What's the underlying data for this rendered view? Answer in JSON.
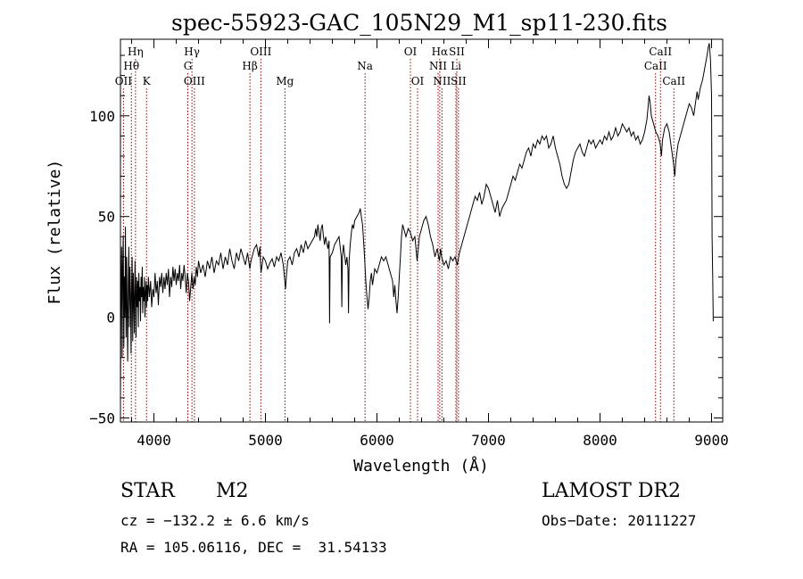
{
  "chart_data": {
    "type": "line",
    "title": "spec-55923-GAC_105N29_M1_sp11-230.fits",
    "xlabel": "Wavelength (Å)",
    "ylabel": "Flux (relative)",
    "xlim": [
      3700,
      9100
    ],
    "ylim": [
      -52,
      138
    ],
    "xticks": [
      4000,
      5000,
      6000,
      7000,
      8000,
      9000
    ],
    "yticks": [
      -50,
      0,
      50,
      100
    ],
    "grid": false,
    "line_color": "#000000",
    "marker_color": "#8b0000",
    "spectrum": [
      [
        3700,
        -40
      ],
      [
        3705,
        10
      ],
      [
        3710,
        35
      ],
      [
        3715,
        -20
      ],
      [
        3720,
        25
      ],
      [
        3725,
        40
      ],
      [
        3730,
        -15
      ],
      [
        3735,
        20
      ],
      [
        3740,
        0
      ],
      [
        3745,
        45
      ],
      [
        3750,
        -10
      ],
      [
        3755,
        30
      ],
      [
        3760,
        5
      ],
      [
        3765,
        -22
      ],
      [
        3770,
        18
      ],
      [
        3775,
        35
      ],
      [
        3780,
        -5
      ],
      [
        3785,
        25
      ],
      [
        3790,
        10
      ],
      [
        3795,
        -18
      ],
      [
        3800,
        15
      ],
      [
        3805,
        30
      ],
      [
        3810,
        -12
      ],
      [
        3815,
        22
      ],
      [
        3820,
        8
      ],
      [
        3825,
        -8
      ],
      [
        3830,
        28
      ],
      [
        3835,
        12
      ],
      [
        3840,
        -10
      ],
      [
        3845,
        20
      ],
      [
        3850,
        5
      ],
      [
        3855,
        18
      ],
      [
        3860,
        -5
      ],
      [
        3865,
        22
      ],
      [
        3870,
        8
      ],
      [
        3875,
        15
      ],
      [
        3880,
        -2
      ],
      [
        3885,
        20
      ],
      [
        3890,
        10
      ],
      [
        3895,
        25
      ],
      [
        3900,
        2
      ],
      [
        3905,
        15
      ],
      [
        3910,
        8
      ],
      [
        3915,
        20
      ],
      [
        3920,
        0
      ],
      [
        3925,
        12
      ],
      [
        3930,
        18
      ],
      [
        3935,
        5
      ],
      [
        3940,
        16
      ],
      [
        3945,
        8
      ],
      [
        3950,
        20
      ],
      [
        3960,
        10
      ],
      [
        3970,
        18
      ],
      [
        3980,
        5
      ],
      [
        3990,
        14
      ],
      [
        4000,
        10
      ],
      [
        4010,
        22
      ],
      [
        4020,
        12
      ],
      [
        4030,
        18
      ],
      [
        4040,
        6
      ],
      [
        4050,
        20
      ],
      [
        4060,
        15
      ],
      [
        4070,
        22
      ],
      [
        4080,
        12
      ],
      [
        4090,
        20
      ],
      [
        4100,
        14
      ],
      [
        4110,
        22
      ],
      [
        4120,
        16
      ],
      [
        4130,
        24
      ],
      [
        4140,
        10
      ],
      [
        4150,
        20
      ],
      [
        4160,
        15
      ],
      [
        4170,
        25
      ],
      [
        4180,
        18
      ],
      [
        4190,
        24
      ],
      [
        4200,
        16
      ],
      [
        4210,
        22
      ],
      [
        4220,
        18
      ],
      [
        4230,
        26
      ],
      [
        4240,
        14
      ],
      [
        4250,
        22
      ],
      [
        4260,
        18
      ],
      [
        4270,
        26
      ],
      [
        4280,
        20
      ],
      [
        4290,
        12
      ],
      [
        4300,
        22
      ],
      [
        4310,
        18
      ],
      [
        4320,
        8
      ],
      [
        4330,
        15
      ],
      [
        4340,
        22
      ],
      [
        4350,
        14
      ],
      [
        4360,
        20
      ],
      [
        4370,
        16
      ],
      [
        4380,
        25
      ],
      [
        4390,
        20
      ],
      [
        4400,
        28
      ],
      [
        4420,
        22
      ],
      [
        4440,
        26
      ],
      [
        4460,
        20
      ],
      [
        4480,
        28
      ],
      [
        4500,
        24
      ],
      [
        4520,
        30
      ],
      [
        4540,
        22
      ],
      [
        4560,
        28
      ],
      [
        4580,
        26
      ],
      [
        4600,
        32
      ],
      [
        4620,
        24
      ],
      [
        4640,
        30
      ],
      [
        4660,
        26
      ],
      [
        4680,
        34
      ],
      [
        4700,
        28
      ],
      [
        4720,
        24
      ],
      [
        4740,
        32
      ],
      [
        4760,
        28
      ],
      [
        4780,
        34
      ],
      [
        4800,
        30
      ],
      [
        4820,
        26
      ],
      [
        4840,
        32
      ],
      [
        4860,
        24
      ],
      [
        4870,
        28
      ],
      [
        4880,
        30
      ],
      [
        4900,
        34
      ],
      [
        4920,
        36
      ],
      [
        4940,
        30
      ],
      [
        4950,
        35
      ],
      [
        4960,
        22
      ],
      [
        4970,
        26
      ],
      [
        4980,
        30
      ],
      [
        5000,
        28
      ],
      [
        5020,
        24
      ],
      [
        5040,
        27
      ],
      [
        5060,
        29
      ],
      [
        5080,
        25
      ],
      [
        5100,
        30
      ],
      [
        5120,
        28
      ],
      [
        5140,
        32
      ],
      [
        5160,
        26
      ],
      [
        5170,
        20
      ],
      [
        5180,
        14
      ],
      [
        5190,
        22
      ],
      [
        5200,
        28
      ],
      [
        5220,
        30
      ],
      [
        5240,
        26
      ],
      [
        5260,
        32
      ],
      [
        5280,
        34
      ],
      [
        5300,
        30
      ],
      [
        5320,
        36
      ],
      [
        5340,
        32
      ],
      [
        5360,
        38
      ],
      [
        5380,
        34
      ],
      [
        5400,
        36
      ],
      [
        5420,
        38
      ],
      [
        5440,
        40
      ],
      [
        5450,
        44
      ],
      [
        5460,
        40
      ],
      [
        5470,
        46
      ],
      [
        5480,
        42
      ],
      [
        5490,
        38
      ],
      [
        5500,
        44
      ],
      [
        5510,
        46
      ],
      [
        5520,
        40
      ],
      [
        5530,
        36
      ],
      [
        5540,
        40
      ],
      [
        5560,
        34
      ],
      [
        5570,
        38
      ],
      [
        5575,
        -3
      ],
      [
        5580,
        30
      ],
      [
        5600,
        32
      ],
      [
        5620,
        36
      ],
      [
        5640,
        38
      ],
      [
        5660,
        40
      ],
      [
        5680,
        30
      ],
      [
        5685,
        5
      ],
      [
        5690,
        30
      ],
      [
        5700,
        36
      ],
      [
        5720,
        26
      ],
      [
        5730,
        30
      ],
      [
        5740,
        24
      ],
      [
        5745,
        2
      ],
      [
        5750,
        28
      ],
      [
        5760,
        36
      ],
      [
        5770,
        42
      ],
      [
        5780,
        46
      ],
      [
        5790,
        44
      ],
      [
        5800,
        48
      ],
      [
        5820,
        50
      ],
      [
        5840,
        52
      ],
      [
        5850,
        54
      ],
      [
        5860,
        50
      ],
      [
        5870,
        46
      ],
      [
        5880,
        38
      ],
      [
        5890,
        28
      ],
      [
        5900,
        18
      ],
      [
        5910,
        10
      ],
      [
        5920,
        4
      ],
      [
        5930,
        10
      ],
      [
        5940,
        18
      ],
      [
        5950,
        22
      ],
      [
        5960,
        16
      ],
      [
        5980,
        24
      ],
      [
        6000,
        22
      ],
      [
        6020,
        26
      ],
      [
        6040,
        30
      ],
      [
        6060,
        28
      ],
      [
        6080,
        30
      ],
      [
        6100,
        26
      ],
      [
        6120,
        22
      ],
      [
        6140,
        18
      ],
      [
        6150,
        10
      ],
      [
        6160,
        16
      ],
      [
        6170,
        8
      ],
      [
        6180,
        2
      ],
      [
        6190,
        10
      ],
      [
        6200,
        20
      ],
      [
        6210,
        30
      ],
      [
        6220,
        40
      ],
      [
        6230,
        46
      ],
      [
        6240,
        44
      ],
      [
        6260,
        40
      ],
      [
        6280,
        44
      ],
      [
        6300,
        42
      ],
      [
        6320,
        38
      ],
      [
        6340,
        40
      ],
      [
        6360,
        28
      ],
      [
        6370,
        34
      ],
      [
        6380,
        40
      ],
      [
        6400,
        44
      ],
      [
        6420,
        48
      ],
      [
        6440,
        50
      ],
      [
        6460,
        46
      ],
      [
        6480,
        40
      ],
      [
        6500,
        36
      ],
      [
        6520,
        30
      ],
      [
        6540,
        34
      ],
      [
        6560,
        28
      ],
      [
        6570,
        34
      ],
      [
        6580,
        30
      ],
      [
        6600,
        26
      ],
      [
        6620,
        28
      ],
      [
        6640,
        24
      ],
      [
        6660,
        30
      ],
      [
        6680,
        28
      ],
      [
        6700,
        30
      ],
      [
        6720,
        26
      ],
      [
        6740,
        32
      ],
      [
        6760,
        36
      ],
      [
        6780,
        40
      ],
      [
        6800,
        44
      ],
      [
        6820,
        48
      ],
      [
        6840,
        52
      ],
      [
        6860,
        56
      ],
      [
        6880,
        60
      ],
      [
        6900,
        58
      ],
      [
        6920,
        62
      ],
      [
        6940,
        56
      ],
      [
        6960,
        60
      ],
      [
        6980,
        66
      ],
      [
        7000,
        64
      ],
      [
        7020,
        60
      ],
      [
        7040,
        56
      ],
      [
        7060,
        52
      ],
      [
        7080,
        58
      ],
      [
        7100,
        50
      ],
      [
        7120,
        54
      ],
      [
        7140,
        56
      ],
      [
        7160,
        58
      ],
      [
        7180,
        62
      ],
      [
        7200,
        66
      ],
      [
        7220,
        70
      ],
      [
        7240,
        68
      ],
      [
        7260,
        72
      ],
      [
        7280,
        76
      ],
      [
        7300,
        74
      ],
      [
        7320,
        78
      ],
      [
        7340,
        82
      ],
      [
        7360,
        84
      ],
      [
        7380,
        80
      ],
      [
        7400,
        86
      ],
      [
        7420,
        84
      ],
      [
        7440,
        88
      ],
      [
        7460,
        86
      ],
      [
        7480,
        90
      ],
      [
        7500,
        88
      ],
      [
        7520,
        90
      ],
      [
        7540,
        84
      ],
      [
        7560,
        86
      ],
      [
        7580,
        90
      ],
      [
        7600,
        84
      ],
      [
        7620,
        80
      ],
      [
        7640,
        76
      ],
      [
        7660,
        70
      ],
      [
        7680,
        66
      ],
      [
        7700,
        64
      ],
      [
        7720,
        66
      ],
      [
        7740,
        72
      ],
      [
        7760,
        78
      ],
      [
        7780,
        82
      ],
      [
        7800,
        84
      ],
      [
        7820,
        86
      ],
      [
        7840,
        82
      ],
      [
        7860,
        80
      ],
      [
        7880,
        84
      ],
      [
        7900,
        88
      ],
      [
        7920,
        86
      ],
      [
        7940,
        88
      ],
      [
        7960,
        84
      ],
      [
        7980,
        86
      ],
      [
        8000,
        88
      ],
      [
        8020,
        86
      ],
      [
        8040,
        90
      ],
      [
        8060,
        88
      ],
      [
        8080,
        92
      ],
      [
        8100,
        88
      ],
      [
        8120,
        90
      ],
      [
        8140,
        94
      ],
      [
        8160,
        90
      ],
      [
        8180,
        92
      ],
      [
        8200,
        96
      ],
      [
        8220,
        94
      ],
      [
        8240,
        92
      ],
      [
        8260,
        94
      ],
      [
        8280,
        90
      ],
      [
        8300,
        92
      ],
      [
        8320,
        88
      ],
      [
        8340,
        90
      ],
      [
        8360,
        86
      ],
      [
        8380,
        88
      ],
      [
        8400,
        92
      ],
      [
        8420,
        98
      ],
      [
        8430,
        104
      ],
      [
        8440,
        110
      ],
      [
        8450,
        106
      ],
      [
        8460,
        100
      ],
      [
        8480,
        96
      ],
      [
        8500,
        92
      ],
      [
        8520,
        90
      ],
      [
        8540,
        86
      ],
      [
        8550,
        80
      ],
      [
        8560,
        88
      ],
      [
        8580,
        94
      ],
      [
        8600,
        96
      ],
      [
        8620,
        92
      ],
      [
        8640,
        84
      ],
      [
        8660,
        76
      ],
      [
        8670,
        70
      ],
      [
        8680,
        78
      ],
      [
        8700,
        86
      ],
      [
        8720,
        90
      ],
      [
        8740,
        94
      ],
      [
        8760,
        98
      ],
      [
        8780,
        102
      ],
      [
        8800,
        106
      ],
      [
        8820,
        104
      ],
      [
        8840,
        100
      ],
      [
        8860,
        108
      ],
      [
        8870,
        112
      ],
      [
        8880,
        108
      ],
      [
        8900,
        114
      ],
      [
        8920,
        118
      ],
      [
        8940,
        124
      ],
      [
        8960,
        130
      ],
      [
        8970,
        134
      ],
      [
        8980,
        136
      ],
      [
        8990,
        128
      ],
      [
        9000,
        110
      ],
      [
        9005,
        40
      ],
      [
        9010,
        20
      ],
      [
        9015,
        -2
      ]
    ],
    "lines": [
      {
        "label": "OII",
        "wavelength": 3727,
        "row": 3
      },
      {
        "label": "Hθ",
        "wavelength": 3798,
        "row": 2
      },
      {
        "label": "Hη",
        "wavelength": 3835,
        "row": 1
      },
      {
        "label": "K",
        "wavelength": 3934,
        "row": 3
      },
      {
        "label": "Hγ",
        "wavelength": 4341,
        "row": 1
      },
      {
        "label": "G",
        "wavelength": 4304,
        "row": 2
      },
      {
        "label": "OIII",
        "wavelength": 4363,
        "row": 3
      },
      {
        "label": "Hβ",
        "wavelength": 4861,
        "row": 2
      },
      {
        "label": "OIII",
        "wavelength": 4959,
        "row": 1
      },
      {
        "label": "Mg",
        "wavelength": 5175,
        "row": 3
      },
      {
        "label": "Na",
        "wavelength": 5893,
        "row": 2
      },
      {
        "label": "OI",
        "wavelength": 6300,
        "row": 1
      },
      {
        "label": "OI",
        "wavelength": 6364,
        "row": 3
      },
      {
        "label": "NII",
        "wavelength": 6548,
        "row": 2
      },
      {
        "label": "Hα",
        "wavelength": 6563,
        "row": 1
      },
      {
        "label": "NII",
        "wavelength": 6583,
        "row": 3
      },
      {
        "label": "SII",
        "wavelength": 6716,
        "row": 1
      },
      {
        "label": "Li",
        "wavelength": 6708,
        "row": 2
      },
      {
        "label": "SII",
        "wavelength": 6731,
        "row": 3
      },
      {
        "label": "CaII",
        "wavelength": 8498,
        "row": 2
      },
      {
        "label": "CaII",
        "wavelength": 8542,
        "row": 1
      },
      {
        "label": "CaII",
        "wavelength": 8662,
        "row": 3
      }
    ]
  },
  "info": {
    "class": "STAR",
    "subclass": "M2",
    "survey": "LAMOST DR2",
    "redshift": "cz = −132.2 ± 6.6 km/s",
    "obsdate": "Obs−Date: 20111227",
    "coords": "RA = 105.06116, DEC =  31.54133"
  }
}
